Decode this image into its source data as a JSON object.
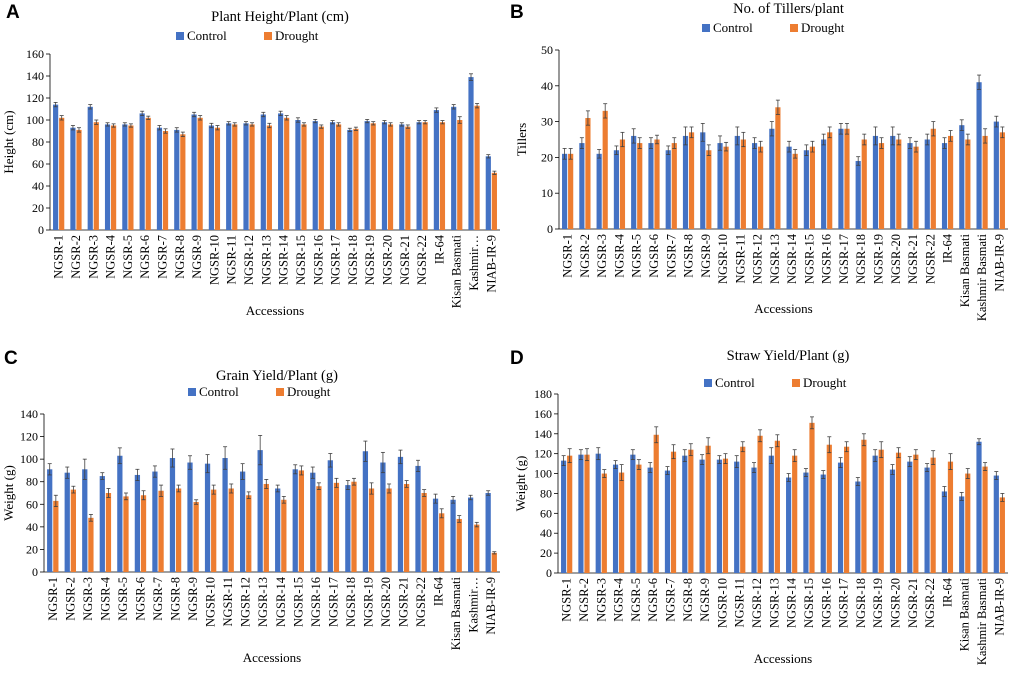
{
  "colors": {
    "control": "#4472C4",
    "drought": "#ED7D31",
    "errorbar": "#404040",
    "axis": "#000000"
  },
  "chart_data": [
    {
      "panel_label": "A",
      "type": "bar",
      "title": "Plant Height/Plant (cm)",
      "xlabel": "Accessions",
      "ylabel": "Height (cm)",
      "ylim": [
        0,
        160
      ],
      "yticks": [
        0,
        20,
        40,
        60,
        80,
        100,
        120,
        140,
        160
      ],
      "legend_position": "top",
      "categories": [
        "NGSR-1",
        "NGSR-2",
        "NGSR-3",
        "NGSR-4",
        "NGSR-5",
        "NGSR-6",
        "NGSR-7",
        "NGSR-8",
        "NGSR-9",
        "NGSR-10",
        "NGSR-11",
        "NGSR-12",
        "NGSR-13",
        "NGSR-14",
        "NGSR-15",
        "NGSR-16",
        "NGSR-17",
        "NGSR-18",
        "NGSR-19",
        "NGSR-20",
        "NGSR-21",
        "NGSR-22",
        "IR-64",
        "Kisan Basmati",
        "Kashmir…",
        "NIAB-IR-9"
      ],
      "series": [
        {
          "name": "Control",
          "values": [
            114,
            93,
            112,
            96,
            96,
            106,
            93,
            91,
            105,
            95,
            97,
            97,
            105,
            106,
            100,
            99,
            98,
            91,
            99,
            98,
            96,
            98,
            109,
            112,
            139,
            67
          ],
          "errors": [
            2,
            2,
            2,
            1.5,
            1.5,
            2,
            2,
            2,
            2,
            2,
            1.5,
            1.5,
            2,
            2,
            2,
            1.5,
            1.5,
            1.5,
            1.5,
            1.5,
            1.5,
            1.5,
            2,
            2,
            3,
            1.5
          ]
        },
        {
          "name": "Drought",
          "values": [
            102,
            91,
            98,
            95,
            95,
            102,
            90,
            87,
            102,
            93,
            96,
            96,
            95,
            102,
            96,
            94,
            96,
            92,
            97,
            96,
            94,
            98,
            98,
            100,
            113,
            52
          ],
          "errors": [
            2,
            2,
            2,
            1.5,
            1.5,
            1.5,
            2,
            2,
            2,
            2,
            1.5,
            1.5,
            2,
            2,
            1.5,
            1.5,
            1.5,
            1.5,
            1.5,
            1.5,
            1.5,
            1.5,
            1.5,
            3,
            2,
            1.5
          ]
        }
      ]
    },
    {
      "panel_label": "B",
      "type": "bar",
      "title": "No. of Tillers/plant",
      "xlabel": "Accessions",
      "ylabel": "Tillers",
      "ylim": [
        0,
        50
      ],
      "yticks": [
        0,
        10,
        20,
        30,
        40,
        50
      ],
      "legend_position": "top",
      "categories": [
        "NGSR-1",
        "NGSR-2",
        "NGSR-3",
        "NGSR-4",
        "NGSR-5",
        "NGSR-6",
        "NGSR-7",
        "NGSR-8",
        "NGSR-9",
        "NGSR-10",
        "NGSR-11",
        "NGSR-12",
        "NGSR-13",
        "NGSR-14",
        "NGSR-15",
        "NGSR-16",
        "NGSR-17",
        "NGSR-18",
        "NGSR-19",
        "NGSR-20",
        "NGSR-21",
        "NGSR-22",
        "IR-64",
        "Kisan Basmati",
        "Kashmir Basmati",
        "NIAB-IR-9"
      ],
      "series": [
        {
          "name": "Control",
          "values": [
            21,
            24,
            21,
            22,
            26,
            24,
            22,
            26,
            27,
            24,
            26,
            24,
            28,
            23,
            22,
            25,
            28,
            19,
            26,
            26,
            24,
            25,
            24,
            29,
            41,
            30
          ],
          "errors": [
            1.5,
            1.5,
            1.2,
            1.2,
            2,
            1.5,
            1.2,
            2.5,
            2.5,
            2,
            2.5,
            1.5,
            2,
            1.5,
            1.5,
            1.5,
            1.5,
            1.2,
            2.5,
            2.5,
            1.5,
            1.5,
            1.5,
            1.5,
            2,
            1.5
          ]
        },
        {
          "name": "Drought",
          "values": [
            21,
            31,
            33,
            25,
            24,
            25,
            24,
            27,
            22,
            23,
            25,
            23,
            34,
            21,
            23,
            27,
            28,
            25,
            24,
            25,
            23,
            28,
            26,
            25,
            26,
            27
          ],
          "errors": [
            1.5,
            2,
            2,
            2,
            1.5,
            1.2,
            1.5,
            1.5,
            1.5,
            1.2,
            2,
            1.5,
            2,
            1.2,
            1.5,
            1.5,
            1.5,
            1.5,
            1.5,
            1.5,
            1.5,
            2,
            1.5,
            1.5,
            2,
            1.5
          ]
        }
      ]
    },
    {
      "panel_label": "C",
      "type": "bar",
      "title": "Grain Yield/Plant (g)",
      "xlabel": "Accessions",
      "ylabel": "Weight (g)",
      "ylim": [
        0,
        140
      ],
      "yticks": [
        0,
        20,
        40,
        60,
        80,
        100,
        120,
        140
      ],
      "legend_position": "top",
      "categories": [
        "NGSR-1",
        "NGSR-2",
        "NGSR-3",
        "NGSR-4",
        "NGSR-5",
        "NGSR-6",
        "NGSR-7",
        "NGSR-8",
        "NGSR-9",
        "NGSR-10",
        "NGSR-11",
        "NGSR-12",
        "NGSR-13",
        "NGSR-14",
        "NGSR-15",
        "NGSR-16",
        "NGSR-17",
        "NGSR-18",
        "NGSR-19",
        "NGSR-20",
        "NGSR-21",
        "NGSR-22",
        "IR-64",
        "Kisan Basmati",
        "Kashmir…",
        "NIAB-IR-9"
      ],
      "series": [
        {
          "name": "Control",
          "values": [
            91,
            88,
            91,
            85,
            103,
            86,
            89,
            101,
            97,
            96,
            101,
            89,
            108,
            74,
            91,
            88,
            99,
            77,
            107,
            97,
            102,
            94,
            65,
            64,
            66,
            70
          ],
          "errors": [
            5,
            5,
            9,
            3,
            7,
            5,
            5,
            8,
            6,
            8,
            10,
            7,
            13,
            3,
            4,
            5,
            6,
            4,
            9,
            9,
            6,
            5,
            4,
            3,
            2,
            2
          ]
        },
        {
          "name": "Drought",
          "values": [
            63,
            73,
            48,
            70,
            67,
            68,
            72,
            74,
            62,
            73,
            74,
            68,
            78,
            64,
            90,
            76,
            79,
            80,
            74,
            74,
            78,
            70,
            52,
            47,
            42,
            17
          ],
          "errors": [
            5,
            3,
            3,
            4,
            3,
            4,
            5,
            3,
            2,
            4,
            4,
            3,
            4,
            3,
            4,
            3,
            4,
            3,
            5,
            4,
            3,
            3,
            4,
            3,
            2,
            1
          ]
        }
      ]
    },
    {
      "panel_label": "D",
      "type": "bar",
      "title": "Straw Yield/Plant (g)",
      "xlabel": "Accessions",
      "ylabel": "Weight (g)",
      "ylim": [
        0,
        180
      ],
      "yticks": [
        0,
        20,
        40,
        60,
        80,
        100,
        120,
        140,
        160,
        180
      ],
      "legend_position": "top",
      "categories": [
        "NGSR-1",
        "NGSR-2",
        "NGSR-3",
        "NGSR-4",
        "NGSR-5",
        "NGSR-6",
        "NGSR-7",
        "NGSR-8",
        "NGSR-9",
        "NGSR-10",
        "NGSR-11",
        "NGSR-12",
        "NGSR-13",
        "NGSR-14",
        "NGSR-15",
        "NGSR-16",
        "NGSR-17",
        "NGSR-18",
        "NGSR-19",
        "NGSR-20",
        "NGSR-21",
        "NGSR-22",
        "IR-64",
        "Kisan Basmati",
        "Kashmir Basmati",
        "NIAB-IR-9"
      ],
      "series": [
        {
          "name": "Control",
          "values": [
            113,
            119,
            120,
            109,
            119,
            106,
            103,
            118,
            114,
            114,
            112,
            106,
            118,
            96,
            101,
            99,
            111,
            92,
            118,
            104,
            112,
            106,
            82,
            77,
            132,
            98
          ],
          "errors": [
            5,
            5,
            6,
            4,
            5,
            5,
            4,
            6,
            5,
            4,
            6,
            5,
            8,
            4,
            4,
            4,
            5,
            4,
            6,
            5,
            5,
            4,
            5,
            4,
            3,
            4
          ]
        },
        {
          "name": "Drought",
          "values": [
            118,
            119,
            100,
            101,
            109,
            139,
            122,
            124,
            128,
            115,
            127,
            138,
            133,
            118,
            151,
            129,
            127,
            134,
            124,
            121,
            119,
            116,
            112,
            100,
            107,
            76
          ],
          "errors": [
            7,
            6,
            4,
            8,
            5,
            8,
            7,
            6,
            8,
            5,
            5,
            6,
            6,
            6,
            6,
            8,
            5,
            6,
            8,
            5,
            5,
            7,
            8,
            5,
            4,
            4
          ]
        }
      ]
    }
  ]
}
